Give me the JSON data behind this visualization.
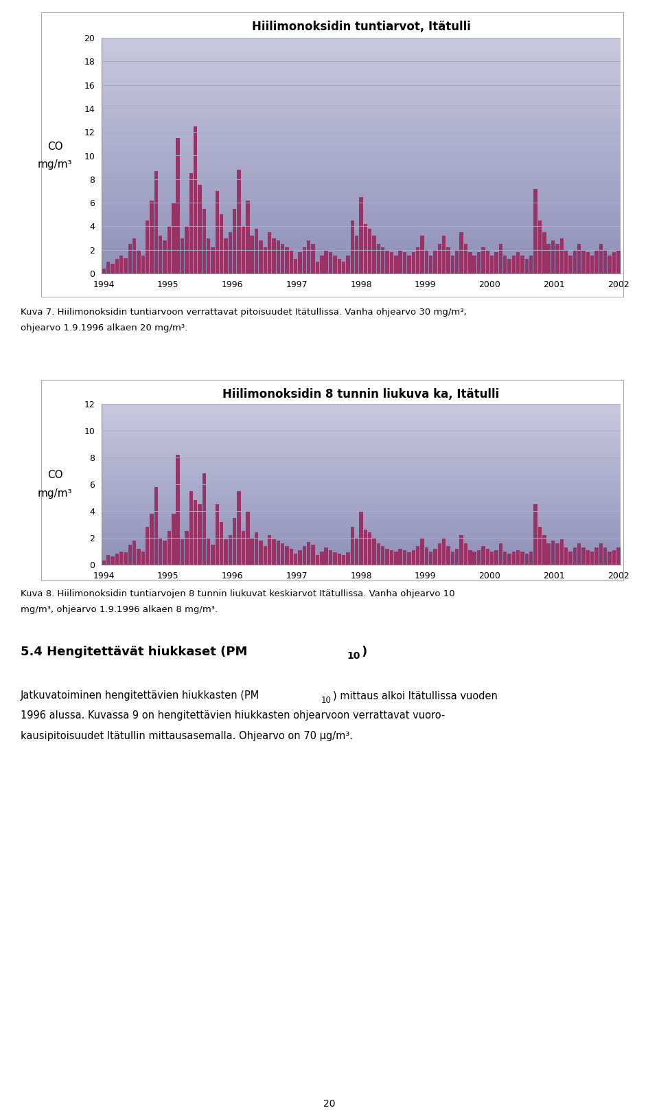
{
  "chart1_title": "Hiilimonoksidin tuntiarvot, Itätulli",
  "chart2_title": "Hiilimonoksidin 8 tunnin liukuva ka, Itätulli",
  "chart1_ylim": [
    0,
    20
  ],
  "chart1_yticks": [
    0,
    2,
    4,
    6,
    8,
    10,
    12,
    14,
    16,
    18,
    20
  ],
  "chart2_ylim": [
    0,
    12
  ],
  "chart2_yticks": [
    0,
    2,
    4,
    6,
    8,
    10,
    12
  ],
  "xtick_labels": [
    "1994",
    "1995",
    "1996",
    "1997",
    "1998",
    "1999",
    "2000",
    "2001",
    "2002"
  ],
  "bar_color": "#993366",
  "bg_color_top": "#C8C8E0",
  "bg_color_bottom": "#9090B8",
  "title_fontsize": 12,
  "tick_fontsize": 9,
  "ylabel_co": "CO",
  "ylabel_unit": "mg/m³",
  "caption1_line1": "Kuva 7. Hiilimonoksidin tuntiarvoon verrattavat pitoisuudet Itätullissa. Vanha ohjearvo 30 mg/m³,",
  "caption1_line2": "ohjearvo 1.9.1996 alkaen 20 mg/m³.",
  "caption2_line1": "Kuva 8. Hiilimonoksidin tuntiarvojen 8 tunnin liukuvat keskiarvot Itätullissa. Vanha ohjearvo 10",
  "caption2_line2": "mg/m³, ohjearvo 1.9.1996 alkaen 8 mg/m³.",
  "page_num": "20",
  "chart1_bars": [
    0.4,
    1.0,
    0.8,
    1.2,
    1.5,
    1.3,
    2.5,
    3.0,
    2.0,
    1.5,
    4.5,
    6.2,
    8.7,
    3.2,
    2.8,
    4.0,
    6.0,
    11.5,
    3.0,
    4.0,
    8.5,
    12.5,
    7.5,
    5.5,
    3.0,
    2.2,
    7.0,
    5.0,
    3.0,
    3.5,
    5.5,
    8.8,
    4.0,
    6.2,
    3.2,
    3.8,
    2.8,
    2.2,
    3.5,
    3.0,
    2.8,
    2.5,
    2.2,
    2.0,
    1.2,
    1.8,
    2.2,
    2.8,
    2.5,
    1.0,
    1.5,
    2.0,
    1.8,
    1.5,
    1.2,
    1.0,
    1.5,
    4.5,
    3.2,
    6.5,
    4.2,
    3.8,
    3.2,
    2.5,
    2.2,
    2.0,
    1.8,
    1.5,
    2.0,
    1.8,
    1.5,
    1.8,
    2.2,
    3.2,
    2.0,
    1.5,
    2.0,
    2.5,
    3.2,
    2.2,
    1.5,
    2.0,
    3.5,
    2.5,
    1.8,
    1.5,
    1.8,
    2.2,
    2.0,
    1.5,
    1.8,
    2.5,
    1.5,
    1.2,
    1.5,
    1.8,
    1.5,
    1.2,
    1.5,
    7.2,
    4.5,
    3.5,
    2.5,
    2.8,
    2.5,
    3.0,
    2.0,
    1.5,
    2.0,
    2.5,
    2.0,
    1.8,
    1.5,
    2.0,
    2.5,
    2.0,
    1.5,
    1.8,
    2.0
  ],
  "chart2_bars": [
    0.3,
    0.7,
    0.6,
    0.8,
    1.0,
    0.9,
    1.5,
    1.8,
    1.2,
    1.0,
    2.8,
    3.8,
    5.8,
    2.0,
    1.8,
    2.5,
    3.8,
    8.2,
    1.9,
    2.5,
    5.5,
    4.8,
    4.5,
    6.8,
    2.0,
    1.5,
    4.5,
    3.2,
    1.9,
    2.2,
    3.5,
    5.5,
    2.5,
    4.0,
    2.0,
    2.4,
    1.8,
    1.4,
    2.2,
    1.9,
    1.8,
    1.6,
    1.4,
    1.2,
    0.8,
    1.1,
    1.4,
    1.7,
    1.5,
    0.7,
    1.0,
    1.3,
    1.1,
    0.9,
    0.8,
    0.7,
    0.9,
    2.8,
    2.0,
    4.0,
    2.6,
    2.4,
    2.0,
    1.6,
    1.4,
    1.2,
    1.1,
    1.0,
    1.2,
    1.1,
    0.9,
    1.1,
    1.4,
    2.0,
    1.3,
    1.0,
    1.2,
    1.6,
    2.0,
    1.4,
    1.0,
    1.2,
    2.2,
    1.6,
    1.1,
    1.0,
    1.1,
    1.4,
    1.2,
    1.0,
    1.1,
    1.6,
    1.0,
    0.8,
    1.0,
    1.1,
    1.0,
    0.8,
    1.0,
    4.5,
    2.8,
    2.2,
    1.6,
    1.8,
    1.6,
    1.9,
    1.3,
    1.0,
    1.3,
    1.6,
    1.3,
    1.1,
    1.0,
    1.3,
    1.6,
    1.3,
    1.0,
    1.1,
    1.3
  ]
}
